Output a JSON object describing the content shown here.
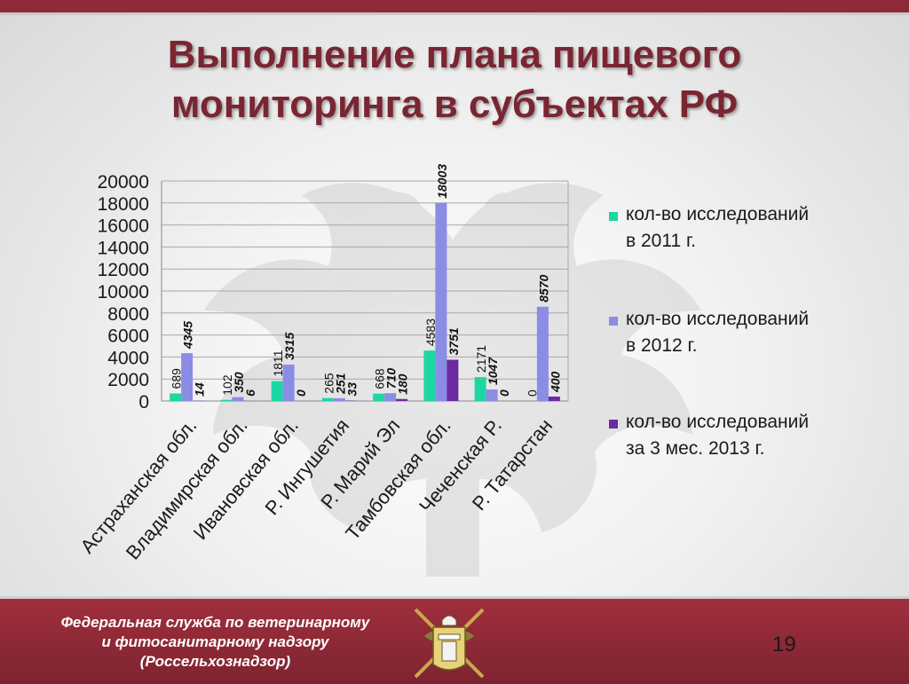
{
  "header": {
    "title_line1": "Выполнение плана пищевого",
    "title_line2": "мониторинга в субъектах РФ"
  },
  "chart_data": {
    "type": "bar",
    "title": "",
    "xlabel": "",
    "ylabel": "",
    "ylim": [
      0,
      20000
    ],
    "yticks": [
      0,
      2000,
      4000,
      6000,
      8000,
      10000,
      12000,
      14000,
      16000,
      18000,
      20000
    ],
    "grid": true,
    "legend_position": "right",
    "categories": [
      "Астраханская обл.",
      "Владимирская обл.",
      "Ивановская обл.",
      "Р. Ингушетия",
      "Р. Марий Эл",
      "Тамбовская обл.",
      "Чеченская Р.",
      "Р. Татарстан"
    ],
    "series": [
      {
        "name": "кол-во исследований в 2011 г.",
        "values": [
          689,
          102,
          1811,
          265,
          668,
          4583,
          2171,
          0
        ],
        "color": "#1dd6a3"
      },
      {
        "name": "кол-во исследований в 2012 г.",
        "values": [
          4345,
          350,
          3315,
          251,
          710,
          18003,
          1047,
          8570
        ],
        "color": "#8b8ce6"
      },
      {
        "name": "кол-во исследований за 3 мес. 2013 г.",
        "values": [
          14,
          6,
          0,
          33,
          180,
          3751,
          0,
          400
        ],
        "color": "#6a2aa0"
      }
    ],
    "legend_lines": [
      [
        "кол-во исследований",
        "в 2011 г."
      ],
      [
        "кол-во исследований",
        "в 2012 г."
      ],
      [
        "кол-во исследований",
        "за 3 мес. 2013 г."
      ]
    ]
  },
  "footer": {
    "line1": "Федеральная служба по ветеринарному",
    "line2": "и фитосанитарному надзору",
    "line3": "(Россельхознадзор)",
    "page_number": "19"
  },
  "icons": {
    "watermark": "double-headed-eagle-icon",
    "emblem": "rosselkhoznadzor-emblem-icon"
  }
}
